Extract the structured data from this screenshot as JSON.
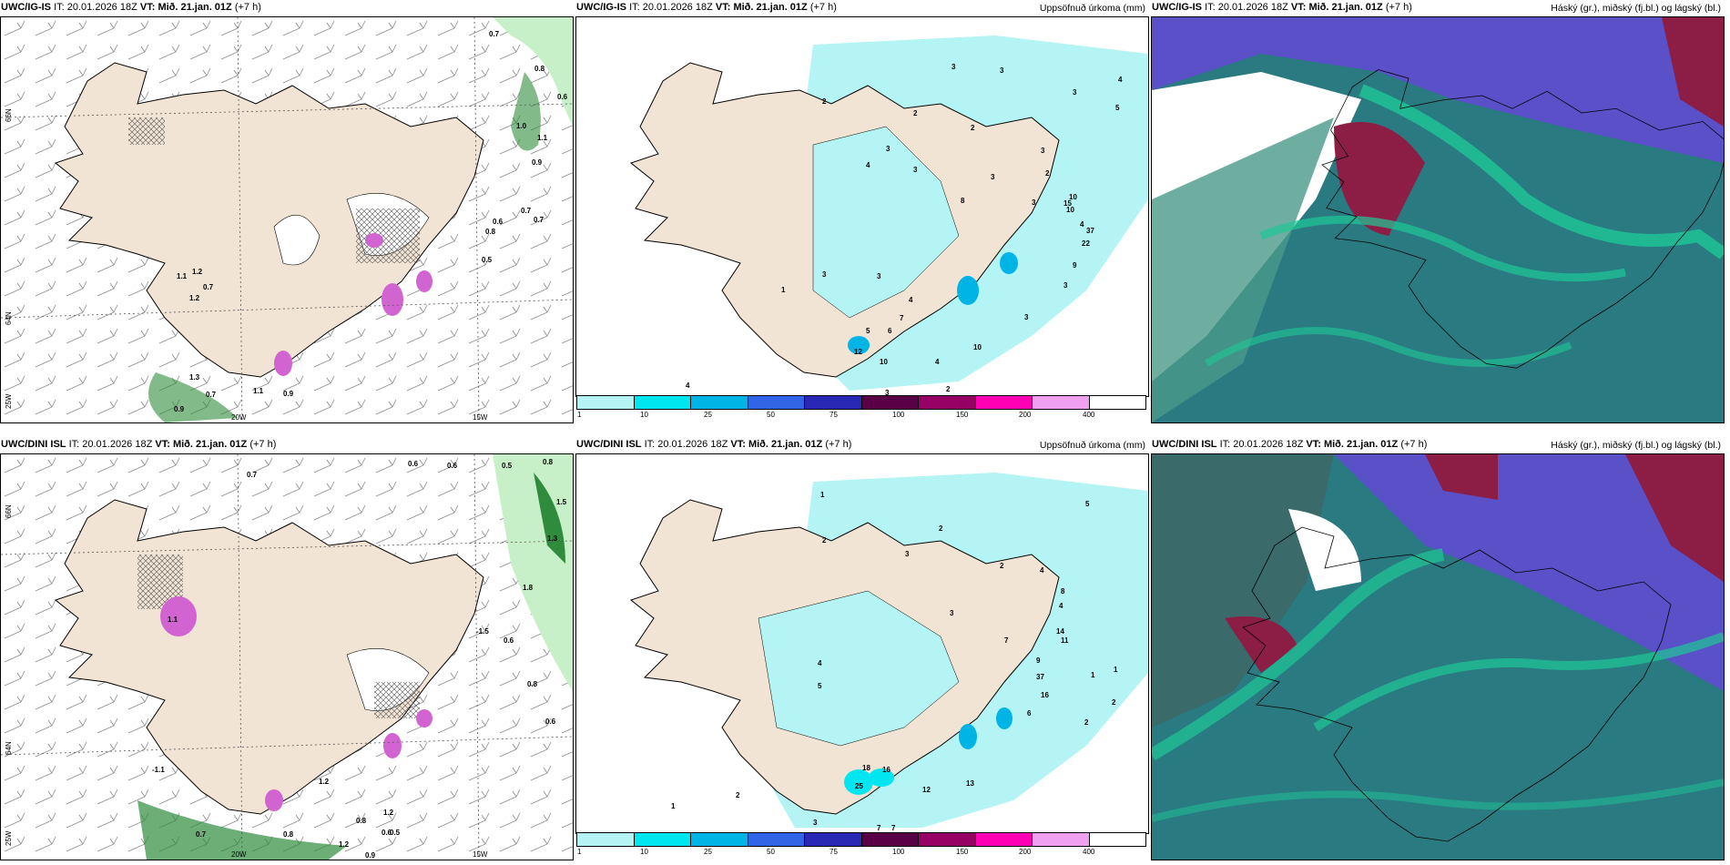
{
  "panels": [
    {
      "model": "UWC/IG-IS",
      "it_label": "IT:",
      "it": "20.01.2026 18Z",
      "vt_label": "VT:",
      "vt": "Mið. 21.jan. 01Z",
      "lead": "(+7 h)",
      "title_right": "",
      "lat_labels": [
        "66N",
        "64N",
        "25W"
      ],
      "lon_labels": [
        "15W",
        "20W"
      ],
      "values": [
        "0.7",
        "0.8",
        "0.6",
        "1.0",
        "1.1",
        "0.9",
        "0.7",
        "0.7",
        "0.6",
        "0.8",
        "0.5",
        "1.2",
        "1.1",
        "0.7",
        "1.2",
        "1.3",
        "0.7",
        "1.1",
        "0.9",
        "0.9"
      ]
    },
    {
      "model": "UWC/IG-IS",
      "it_label": "IT:",
      "it": "20.01.2026 18Z",
      "vt_label": "VT:",
      "vt": "Mið. 21.jan. 01Z",
      "lead": "(+7 h)",
      "title_right": "Uppsöfnuð úrkoma (mm)",
      "values": [
        "3",
        "3",
        "3",
        "4",
        "5",
        "2",
        "2",
        "2",
        "3",
        "3",
        "2",
        "3",
        "4",
        "3",
        "8",
        "3",
        "4",
        "10",
        "10",
        "15",
        "37",
        "22",
        "9",
        "3",
        "3",
        "1",
        "3",
        "3",
        "4",
        "6",
        "7",
        "5",
        "12",
        "10",
        "10",
        "4",
        "4",
        "3",
        "2"
      ]
    },
    {
      "model": "UWC/IG-IS",
      "it_label": "IT:",
      "it": "20.01.2026 18Z",
      "vt_label": "VT:",
      "vt": "Mið. 21.jan. 01Z",
      "lead": "(+7 h)",
      "title_right": "Háský (gr.), miðský (fj.bl.) og lágský (bl.)"
    },
    {
      "model": "UWC/DINI ISL",
      "it_label": "IT:",
      "it": "20.01.2026 18Z",
      "vt_label": "VT:",
      "vt": "Mið. 21.jan. 01Z",
      "lead": "(+7 h)",
      "title_right": "",
      "lat_labels": [
        "66N",
        "64N",
        "25W"
      ],
      "lon_labels": [
        "20W",
        "15W"
      ],
      "values": [
        "0.7",
        "0.6",
        "0.6",
        "0.5",
        "0.8",
        "1.5",
        "1.3",
        "1.8",
        "-1.5",
        "0.6",
        "0.8",
        "0.6",
        "1.1",
        "-1.1",
        "1.2",
        "0.8",
        "1.2",
        "0.6",
        "0.5",
        "0.7",
        "0.8",
        "1.2",
        "0.9"
      ]
    },
    {
      "model": "UWC/DINI ISL",
      "it_label": "IT:",
      "it": "20.01.2026 18Z",
      "vt_label": "VT:",
      "vt": "Mið. 21.jan. 01Z",
      "lead": "(+7 h)",
      "title_right": "Uppsöfnuð úrkoma (mm)",
      "values": [
        "1",
        "2",
        "5",
        "2",
        "3",
        "2",
        "4",
        "8",
        "4",
        "14",
        "11",
        "9",
        "37",
        "16",
        "6",
        "1",
        "2",
        "2",
        "4",
        "5",
        "3",
        "7",
        "18",
        "16",
        "25",
        "12",
        "13",
        "1",
        "2",
        "3",
        "7",
        "7",
        "1"
      ]
    },
    {
      "model": "UWC/DINI ISL",
      "it_label": "IT:",
      "it": "20.01.2026 18Z",
      "vt_label": "VT:",
      "vt": "Mið. 21.jan. 01Z",
      "lead": "(+7 h)",
      "title_right": "Háský (gr.), miðský (fj.bl.) og lágský (bl.)"
    }
  ],
  "precip_legend": {
    "ticks": [
      "1",
      "10",
      "25",
      "50",
      "75",
      "100",
      "150",
      "200",
      "400"
    ],
    "colors": [
      "#b4f4f4",
      "#00e6f0",
      "#00b4e6",
      "#3264e6",
      "#2828b4",
      "#5a0046",
      "#960064",
      "#ff00b4",
      "#f0a0f0"
    ]
  },
  "colors": {
    "land": "#f2e4d4",
    "precip_light": "#b4f4f4",
    "cloud_low": "#2a7a82",
    "cloud_mid": "#5a50c8",
    "cloud_high": "#1ec896",
    "cloud_red": "#8c1e46",
    "green_light": "#c8f0c8",
    "green_dark": "#2e8c3c",
    "magenta": "#d264d2"
  }
}
